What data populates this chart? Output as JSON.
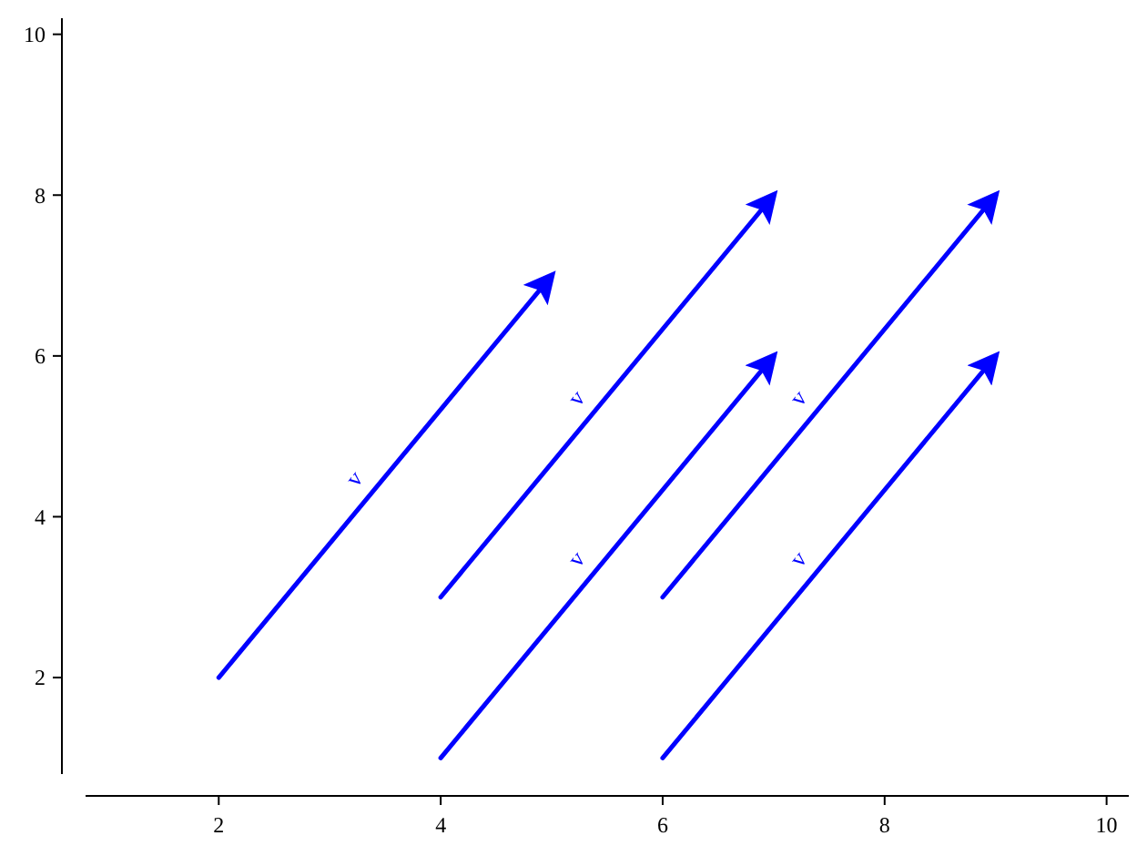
{
  "chart_data": {
    "type": "line",
    "line_style": "solid",
    "marker": "none",
    "grid": false,
    "xlim": [
      0.8,
      10.2
    ],
    "ylim": [
      0.8,
      10.2
    ],
    "xticks": [
      2,
      4,
      6,
      8,
      10
    ],
    "yticks": [
      2,
      4,
      6,
      8,
      10
    ],
    "series": [
      {
        "color": "#0000ff",
        "x": [
          2,
          5
        ],
        "values": [
          2,
          7
        ]
      },
      {
        "color": "#0000ff",
        "x": [
          4,
          7
        ],
        "values": [
          3,
          8
        ]
      },
      {
        "color": "#0000ff",
        "x": [
          4,
          7
        ],
        "values": [
          1,
          6
        ]
      },
      {
        "color": "#0000ff",
        "x": [
          6,
          9
        ],
        "values": [
          3,
          8
        ]
      },
      {
        "color": "#0000ff",
        "x": [
          6,
          9
        ],
        "values": [
          1,
          6
        ]
      }
    ],
    "annotations": [
      {
        "text": "v⃗",
        "x": 3.5,
        "y": 4.5
      },
      {
        "text": "v⃗",
        "x": 5.5,
        "y": 5.5
      },
      {
        "text": "v⃗",
        "x": 5.5,
        "y": 3.5
      },
      {
        "text": "v⃗",
        "x": 7.5,
        "y": 5.5
      },
      {
        "text": "v⃗",
        "x": 7.5,
        "y": 3.5
      }
    ]
  }
}
